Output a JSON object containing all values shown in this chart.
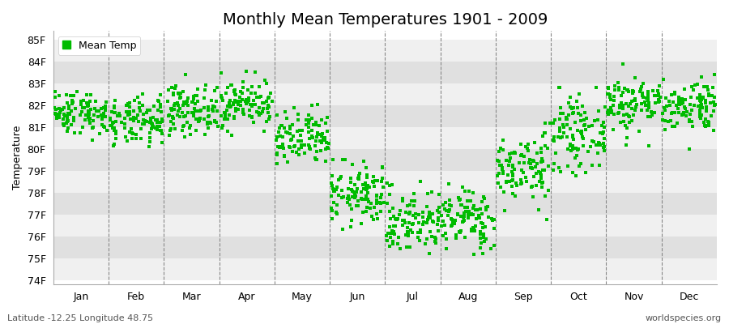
{
  "title": "Monthly Mean Temperatures 1901 - 2009",
  "ylabel": "Temperature",
  "xlabel_labels": [
    "Jan",
    "Feb",
    "Mar",
    "Apr",
    "May",
    "Jun",
    "Jul",
    "Aug",
    "Sep",
    "Oct",
    "Nov",
    "Dec"
  ],
  "ylim": [
    73.8,
    85.4
  ],
  "yticks": [
    74,
    75,
    76,
    77,
    78,
    79,
    80,
    81,
    82,
    83,
    84,
    85
  ],
  "ytick_labels": [
    "74F",
    "75F",
    "76F",
    "77F",
    "78F",
    "79F",
    "80F",
    "81F",
    "82F",
    "83F",
    "84F",
    "85F"
  ],
  "marker_color": "#00bb00",
  "background_color": "#ffffff",
  "plot_bg_light": "#f0f0f0",
  "plot_bg_dark": "#e0e0e0",
  "dashed_line_color": "#888888",
  "n_years": 109,
  "monthly_means": [
    81.7,
    81.2,
    81.8,
    82.1,
    80.4,
    77.9,
    76.7,
    76.8,
    79.1,
    80.7,
    82.1,
    82.0
  ],
  "monthly_stds": [
    0.5,
    0.55,
    0.55,
    0.55,
    0.65,
    0.7,
    0.75,
    0.7,
    0.8,
    0.8,
    0.65,
    0.6
  ],
  "monthly_mins": [
    79.3,
    79.0,
    79.8,
    79.8,
    78.2,
    76.0,
    73.9,
    74.0,
    76.5,
    78.2,
    80.0,
    80.0
  ],
  "monthly_maxs": [
    82.9,
    82.9,
    83.4,
    83.7,
    82.2,
    79.5,
    78.5,
    78.5,
    81.2,
    82.8,
    84.6,
    83.4
  ],
  "legend_label": "Mean Temp",
  "footer_left": "Latitude -12.25 Longitude 48.75",
  "footer_right": "worldspecies.org",
  "title_fontsize": 14,
  "axis_fontsize": 9,
  "tick_fontsize": 9,
  "footer_fontsize": 8
}
